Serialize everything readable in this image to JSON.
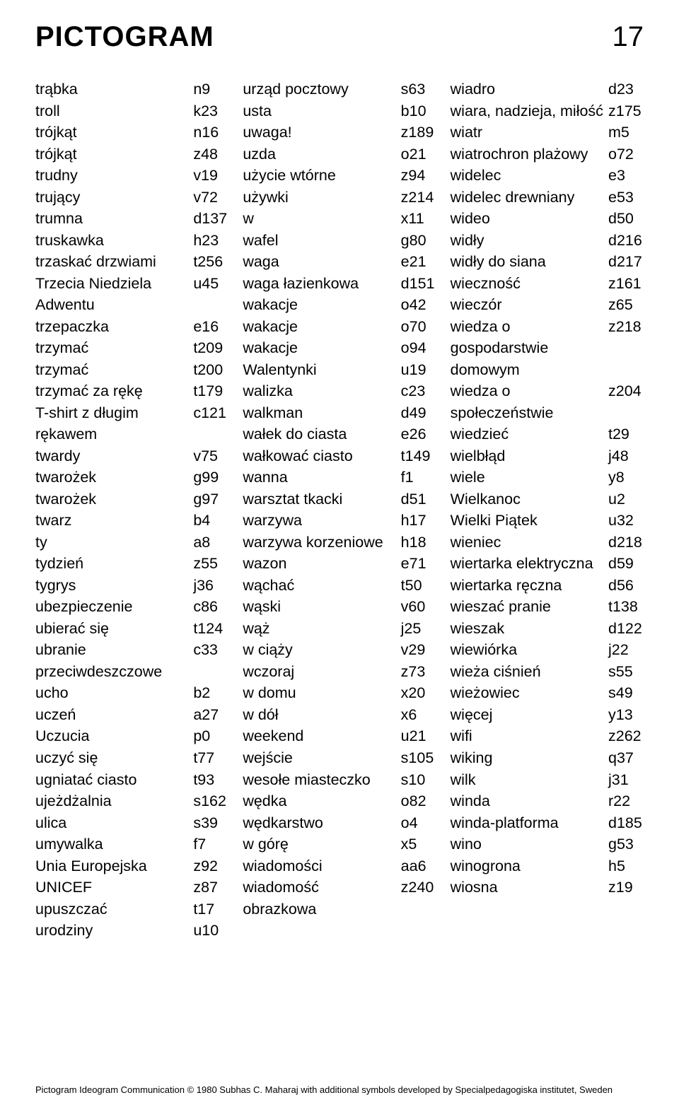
{
  "logo": "PICTOGRAM",
  "page_number": "17",
  "footer": "Pictogram Ideogram Communication © 1980 Subhas C. Maharaj with additional symbols developed by Specialpedagogiska institutet, Sweden",
  "col1": [
    {
      "t": "trąbka",
      "c": "n9"
    },
    {
      "t": "troll",
      "c": "k23"
    },
    {
      "t": "trójkąt",
      "c": "n16"
    },
    {
      "t": "trójkąt",
      "c": "z48"
    },
    {
      "t": "trudny",
      "c": "v19"
    },
    {
      "t": "trujący",
      "c": "v72"
    },
    {
      "t": "trumna",
      "c": "d137"
    },
    {
      "t": "truskawka",
      "c": "h23"
    },
    {
      "t": "trzaskać drzwiami",
      "c": "t256"
    },
    {
      "t": "Trzecia Niedziela Adwentu",
      "c": "u45"
    },
    {
      "t": "trzepaczka",
      "c": "e16"
    },
    {
      "t": "trzymać",
      "c": "t209"
    },
    {
      "t": "trzymać",
      "c": "t200"
    },
    {
      "t": "trzymać za rękę",
      "c": "t179"
    },
    {
      "t": "T-shirt z długim rękawem",
      "c": "c121"
    },
    {
      "t": "twardy",
      "c": "v75"
    },
    {
      "t": "twarożek",
      "c": "g99"
    },
    {
      "t": "twarożek",
      "c": "g97"
    },
    {
      "t": "twarz",
      "c": "b4"
    },
    {
      "t": "ty",
      "c": "a8"
    },
    {
      "t": "tydzień",
      "c": "z55"
    },
    {
      "t": "tygrys",
      "c": "j36"
    },
    {
      "t": "ubezpieczenie",
      "c": "c86"
    },
    {
      "t": "ubierać się",
      "c": "t124"
    },
    {
      "t": "ubranie przeciwdeszcz­owe",
      "c": "c33"
    },
    {
      "t": "ucho",
      "c": "b2"
    },
    {
      "t": "uczeń",
      "c": "a27"
    },
    {
      "t": "Uczucia",
      "c": "p0"
    },
    {
      "t": "uczyć się",
      "c": "t77"
    },
    {
      "t": "ugniatać ciasto",
      "c": "t93"
    },
    {
      "t": "ujeżdżalnia",
      "c": "s162"
    },
    {
      "t": "ulica",
      "c": "s39"
    },
    {
      "t": "umywalka",
      "c": "f7"
    },
    {
      "t": "Unia Europejska",
      "c": "z92"
    },
    {
      "t": "UNICEF",
      "c": "z87"
    },
    {
      "t": "upuszczać",
      "c": "t17"
    },
    {
      "t": "urodziny",
      "c": "u10"
    }
  ],
  "col2": [
    {
      "t": "urząd pocztowy",
      "c": "s63"
    },
    {
      "t": "usta",
      "c": "b10"
    },
    {
      "t": "uwaga!",
      "c": "z189"
    },
    {
      "t": "uzda",
      "c": "o21"
    },
    {
      "t": "użycie wtórne",
      "c": "z94"
    },
    {
      "t": "używki",
      "c": "z214"
    },
    {
      "t": "w",
      "c": "x11"
    },
    {
      "t": "wafel",
      "c": "g80"
    },
    {
      "t": "waga",
      "c": "e21"
    },
    {
      "t": "waga łazienkowa",
      "c": "d151"
    },
    {
      "t": "wakacje",
      "c": "o42"
    },
    {
      "t": "wakacje",
      "c": "o70"
    },
    {
      "t": "wakacje",
      "c": "o94"
    },
    {
      "t": "Walentynki",
      "c": "u19"
    },
    {
      "t": "walizka",
      "c": "c23"
    },
    {
      "t": "walkman",
      "c": "d49"
    },
    {
      "t": "wałek do ciasta",
      "c": "e26"
    },
    {
      "t": "wałkować ciasto",
      "c": "t149"
    },
    {
      "t": "wanna",
      "c": "f1"
    },
    {
      "t": "warsztat tkacki",
      "c": "d51"
    },
    {
      "t": "warzywa",
      "c": "h17"
    },
    {
      "t": "warzywa korzeniowe",
      "c": "h18"
    },
    {
      "t": "wazon",
      "c": "e71"
    },
    {
      "t": "wąchać",
      "c": "t50"
    },
    {
      "t": "wąski",
      "c": "v60"
    },
    {
      "t": "wąż",
      "c": "j25"
    },
    {
      "t": "w ciąży",
      "c": "v29"
    },
    {
      "t": "wczoraj",
      "c": "z73"
    },
    {
      "t": "w domu",
      "c": "x20"
    },
    {
      "t": "w dół",
      "c": "x6"
    },
    {
      "t": "weekend",
      "c": "u21"
    },
    {
      "t": "wejście",
      "c": "s105"
    },
    {
      "t": "wesołe miasteczko",
      "c": "s10"
    },
    {
      "t": "wędka",
      "c": "o82"
    },
    {
      "t": "wędkarstwo",
      "c": "o4"
    },
    {
      "t": "w górę",
      "c": "x5"
    },
    {
      "t": "wiadomości",
      "c": "aa6"
    },
    {
      "t": "wiadomość obrazkowa",
      "c": "z240"
    }
  ],
  "col3": [
    {
      "t": "wiadro",
      "c": "d23"
    },
    {
      "t": "wiara, nadzieja, miłość",
      "c": "z175"
    },
    {
      "t": "wiatr",
      "c": "m5"
    },
    {
      "t": "wiatrochron plażowy",
      "c": "o72"
    },
    {
      "t": "widelec",
      "c": "e3"
    },
    {
      "t": "widelec drewniany",
      "c": "e53"
    },
    {
      "t": "wideo",
      "c": "d50"
    },
    {
      "t": "widły",
      "c": "d216"
    },
    {
      "t": "widły do siana",
      "c": "d217"
    },
    {
      "t": "wieczność",
      "c": "z161"
    },
    {
      "t": "wieczór",
      "c": "z65"
    },
    {
      "t": "wiedza o gospodarstwie domowym",
      "c": "z218"
    },
    {
      "t": "wiedza o społeczeństwi­e",
      "c": "z204"
    },
    {
      "t": "wiedzieć",
      "c": "t29"
    },
    {
      "t": "wielbłąd",
      "c": "j48"
    },
    {
      "t": "wiele",
      "c": "y8"
    },
    {
      "t": "Wielkanoc",
      "c": "u2"
    },
    {
      "t": "Wielki Piątek",
      "c": "u32"
    },
    {
      "t": "wieniec",
      "c": "d218"
    },
    {
      "t": "wiertarka elektryczna",
      "c": "d59"
    },
    {
      "t": "wiertarka ręczna",
      "c": "d56"
    },
    {
      "t": "wieszać pranie",
      "c": "t138"
    },
    {
      "t": "wieszak",
      "c": "d122"
    },
    {
      "t": "wiewiórka",
      "c": "j22"
    },
    {
      "t": "wieża ciśnień",
      "c": "s55"
    },
    {
      "t": "wieżowiec",
      "c": "s49"
    },
    {
      "t": "więcej",
      "c": "y13"
    },
    {
      "t": "wifi",
      "c": "z262"
    },
    {
      "t": "wiking",
      "c": "q37"
    },
    {
      "t": "wilk",
      "c": "j31"
    },
    {
      "t": "winda",
      "c": "r22"
    },
    {
      "t": "winda-platforma",
      "c": "d185"
    },
    {
      "t": "wino",
      "c": "g53"
    },
    {
      "t": "winogrona",
      "c": "h5"
    },
    {
      "t": "wiosna",
      "c": "z19"
    }
  ]
}
